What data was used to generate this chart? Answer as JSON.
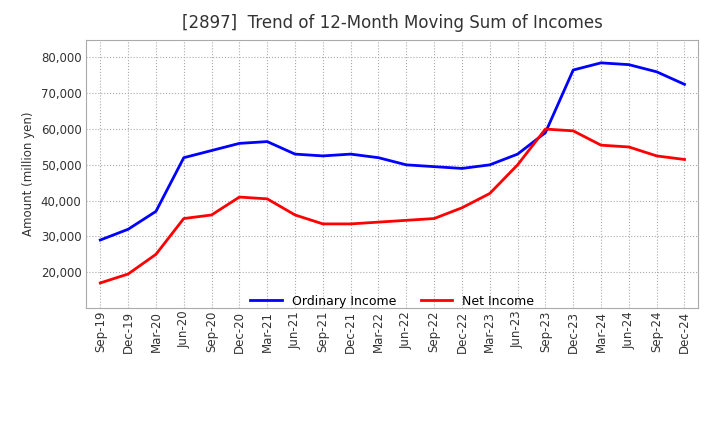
{
  "title": "[2897]  Trend of 12-Month Moving Sum of Incomes",
  "ylabel": "Amount (million yen)",
  "x_labels": [
    "Sep-19",
    "Dec-19",
    "Mar-20",
    "Jun-20",
    "Sep-20",
    "Dec-20",
    "Mar-21",
    "Jun-21",
    "Sep-21",
    "Dec-21",
    "Mar-22",
    "Jun-22",
    "Sep-22",
    "Dec-22",
    "Mar-23",
    "Jun-23",
    "Sep-23",
    "Dec-23",
    "Mar-24",
    "Jun-24",
    "Sep-24",
    "Dec-24"
  ],
  "ordinary_income": [
    29000,
    32000,
    37000,
    52000,
    54000,
    56000,
    56500,
    53000,
    52500,
    53000,
    52000,
    50000,
    49500,
    49000,
    50000,
    53000,
    59000,
    76500,
    78500,
    78000,
    76000,
    72500
  ],
  "net_income": [
    17000,
    19500,
    25000,
    35000,
    36000,
    41000,
    40500,
    36000,
    33500,
    33500,
    34000,
    34500,
    35000,
    38000,
    42000,
    50000,
    60000,
    59500,
    55500,
    55000,
    52500,
    51500
  ],
  "ordinary_color": "#0000ff",
  "net_color": "#ff0000",
  "ylim": [
    10000,
    85000
  ],
  "yticks": [
    20000,
    30000,
    40000,
    50000,
    60000,
    70000,
    80000
  ],
  "background_color": "#ffffff",
  "grid_color": "#aaaaaa",
  "title_fontsize": 12,
  "axis_fontsize": 8.5,
  "legend_fontsize": 9
}
